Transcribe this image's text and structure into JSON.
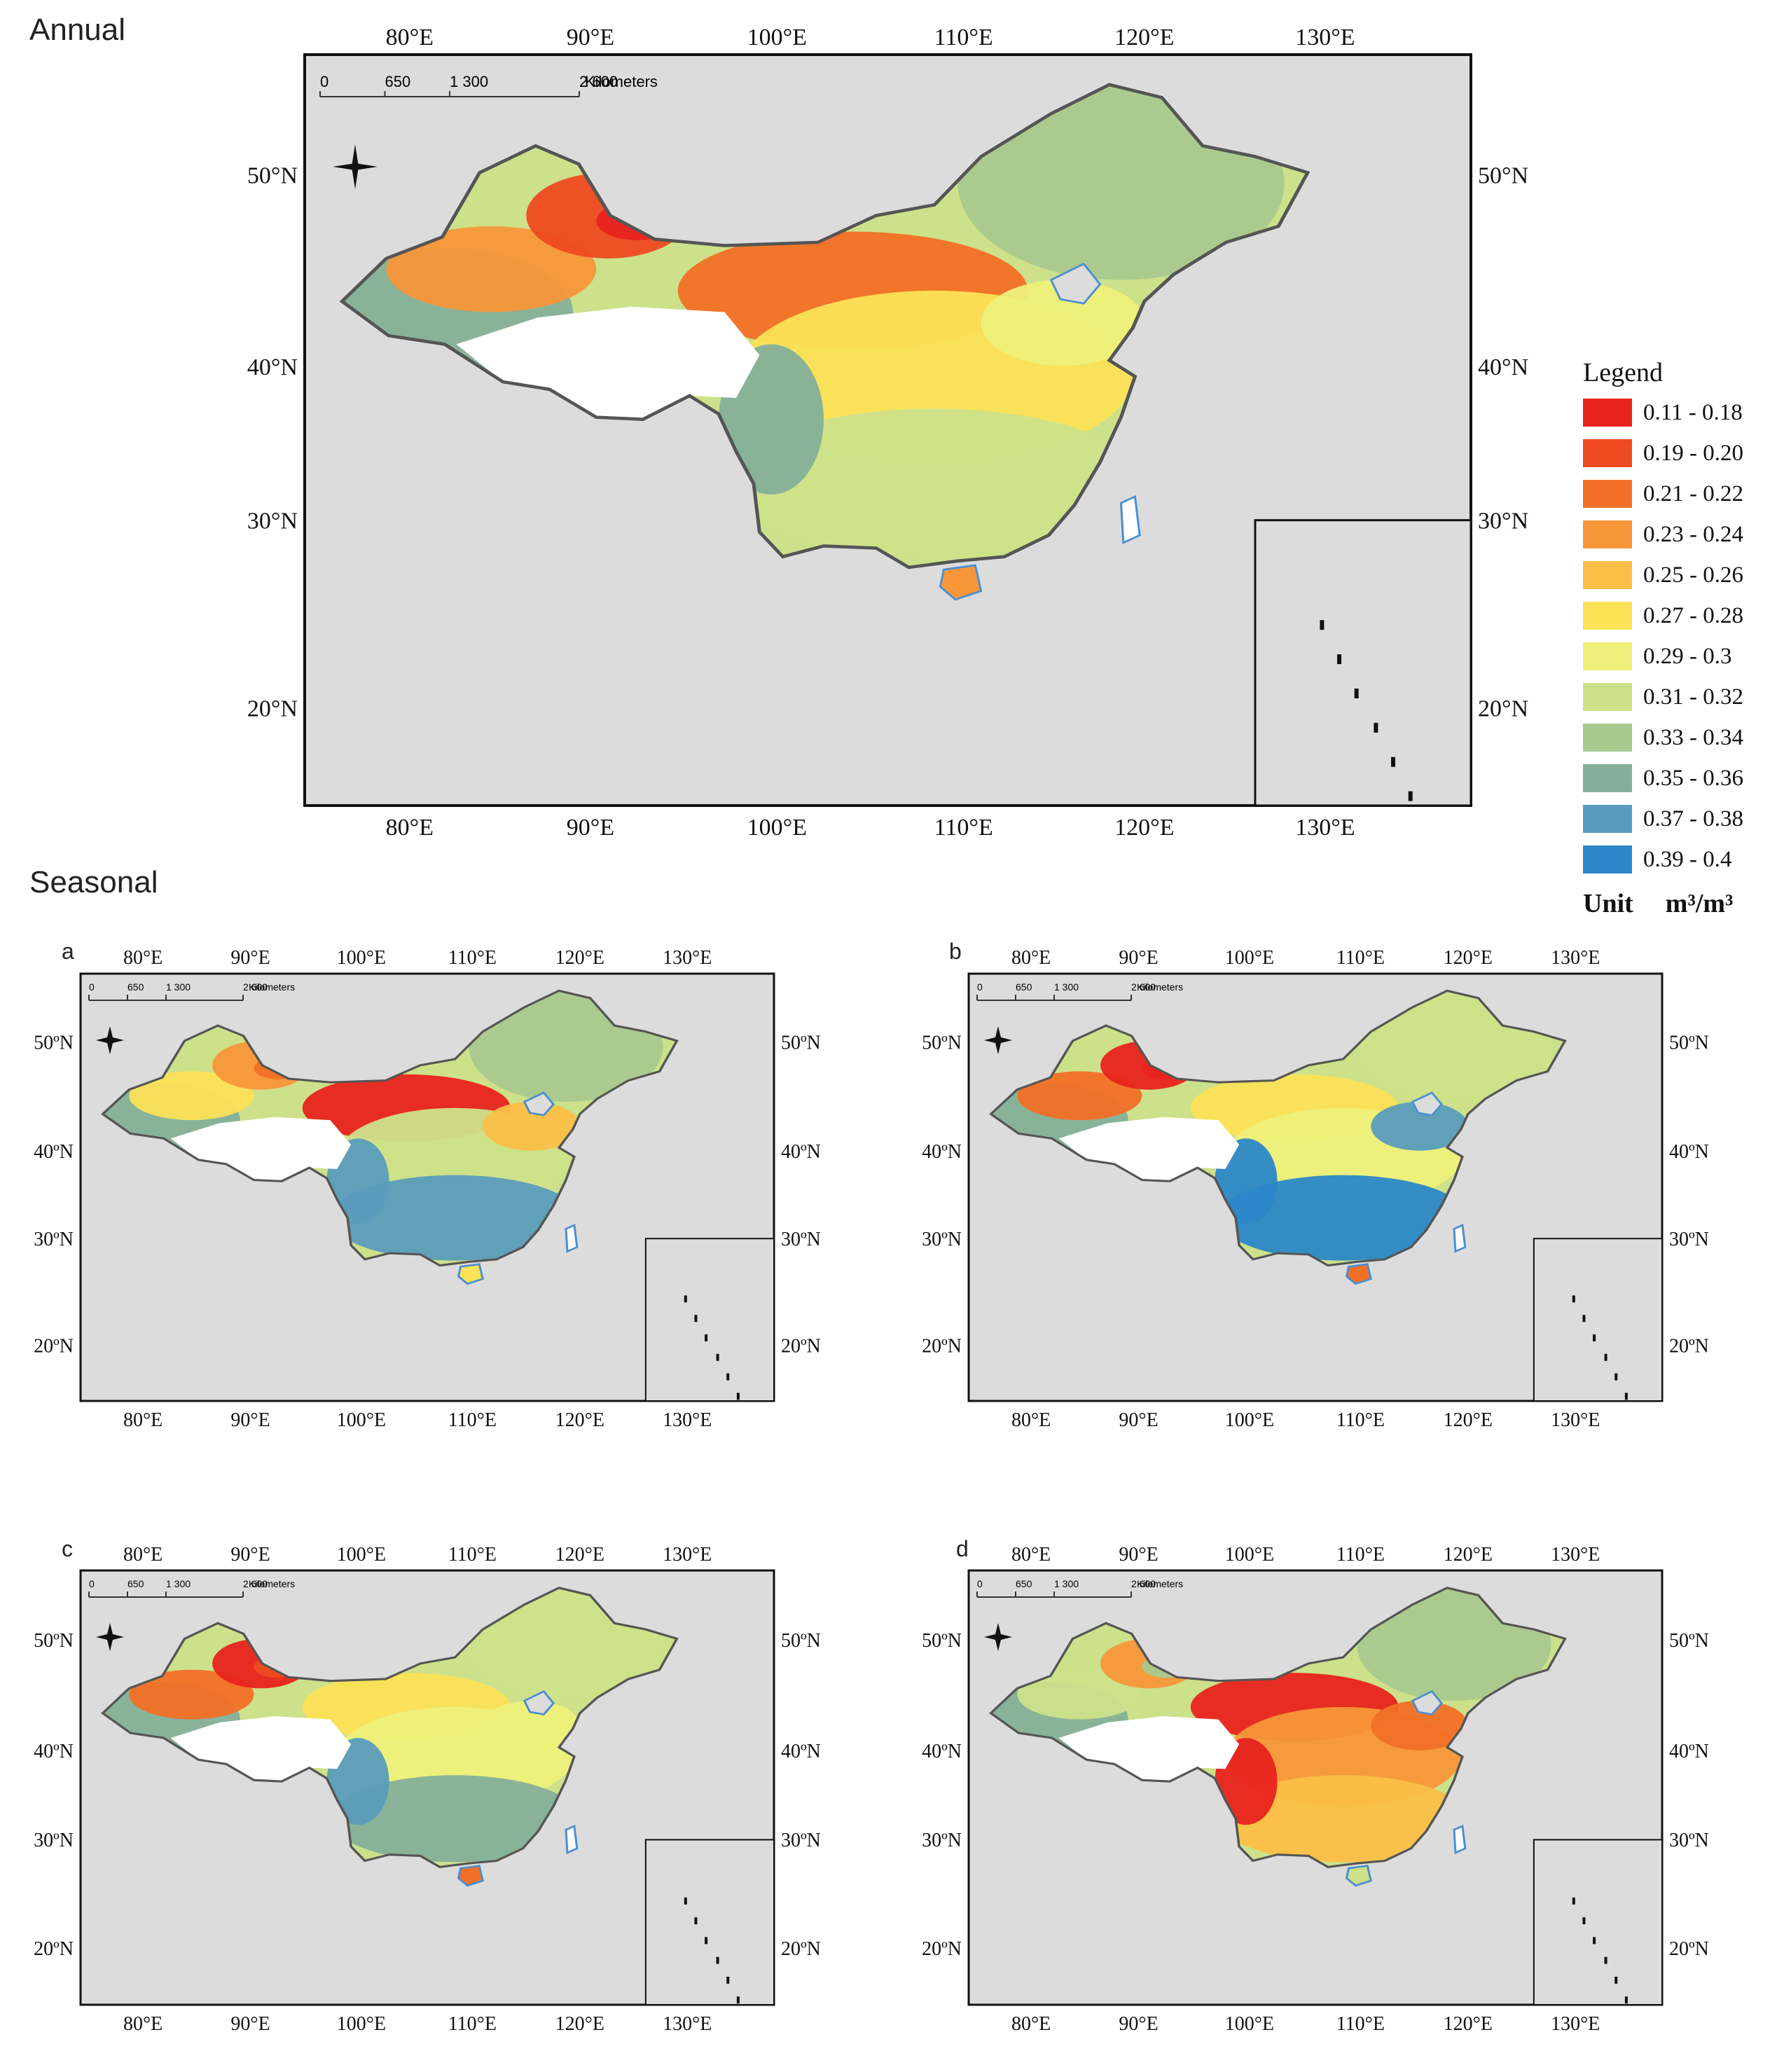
{
  "titles": {
    "annual": "Annual",
    "seasonal": "Seasonal"
  },
  "scale_bar": {
    "ticks": [
      "0",
      "650",
      "1 300",
      "2 600"
    ],
    "unit": "Kilometers"
  },
  "lon_labels": [
    "80°E",
    "90°E",
    "100°E",
    "110°E",
    "120°E",
    "130°E"
  ],
  "lat_labels": [
    "20°N",
    "30°N",
    "40°N",
    "50°N"
  ],
  "lat_labels_small": [
    "20ºN",
    "30ºN",
    "40ºN",
    "50ºN"
  ],
  "lon_labels_small_bottom": [
    "80°E",
    "90°E",
    "100°E",
    "110°E",
    "120°E",
    "130°E"
  ],
  "panel_letters": {
    "a": "a",
    "b": "b",
    "c": "c",
    "d": "d"
  },
  "legend": {
    "title": "Legend",
    "classes": [
      {
        "label": "0.11 - 0.18",
        "color": "#e8231e"
      },
      {
        "label": "0.19 - 0.20",
        "color": "#ee4a22"
      },
      {
        "label": "0.21 - 0.22",
        "color": "#f27026"
      },
      {
        "label": "0.23 - 0.24",
        "color": "#f7973a"
      },
      {
        "label": "0.25 - 0.26",
        "color": "#fbbf47"
      },
      {
        "label": "0.27 - 0.28",
        "color": "#fbe257"
      },
      {
        "label": "0.29 - 0.3",
        "color": "#eef07a"
      },
      {
        "label": "0.31 - 0.32",
        "color": "#cde18a"
      },
      {
        "label": "0.33 - 0.34",
        "color": "#a9c98e"
      },
      {
        "label": "0.35 - 0.36",
        "color": "#84b09a"
      },
      {
        "label": "0.37 - 0.38",
        "color": "#5a9cbb"
      },
      {
        "label": "0.39 - 0.4",
        "color": "#2b87c7"
      }
    ],
    "unit_label": "Unit",
    "unit_value": "m³/m³"
  },
  "colors": {
    "map_background": "#dcdcdc",
    "plateau": "#ffffff",
    "coast": "#4b8fd0",
    "border": "#555555"
  },
  "panels": {
    "annual": {
      "zones": [
        "#84b09a",
        "#f7973a",
        "#ee4a22",
        "#e8231e",
        "#f27026",
        "#fbe257",
        "#cde18a",
        "#a9c98e",
        "#eef07a",
        "#84b09a"
      ]
    },
    "a": {
      "zones": [
        "#84b09a",
        "#fbe257",
        "#f7973a",
        "#f27026",
        "#e8231e",
        "#cde18a",
        "#5a9cbb",
        "#a9c98e",
        "#fbbf47",
        "#5a9cbb"
      ]
    },
    "b": {
      "zones": [
        "#84b09a",
        "#f27026",
        "#e8231e",
        "#e8231e",
        "#fbe257",
        "#eef07a",
        "#2b87c7",
        "#cde18a",
        "#5a9cbb",
        "#2b87c7"
      ]
    },
    "c": {
      "zones": [
        "#84b09a",
        "#f27026",
        "#e8231e",
        "#ee4a22",
        "#fbe257",
        "#eef07a",
        "#84b09a",
        "#cde18a",
        "#eef07a",
        "#5a9cbb"
      ]
    },
    "d": {
      "zones": [
        "#84b09a",
        "#cde18a",
        "#f7973a",
        "#a9c98e",
        "#e8231e",
        "#f7973a",
        "#fbbf47",
        "#a9c98e",
        "#f27026",
        "#e8231e"
      ]
    }
  }
}
